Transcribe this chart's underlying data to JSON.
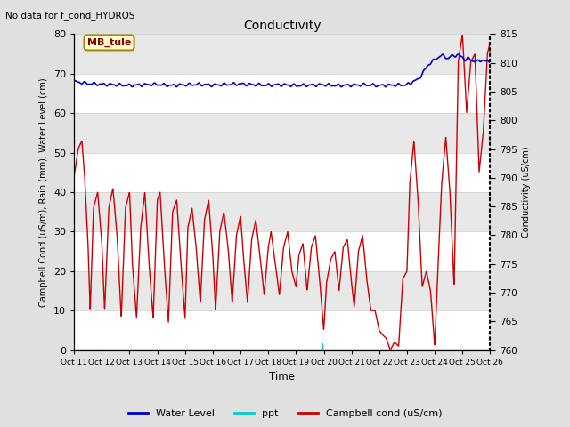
{
  "title": "Conductivity",
  "top_left_text": "No data for f_cond_HYDROS",
  "station_label": "MB_tule",
  "xlabel": "Time",
  "ylabel_left": "Campbell Cond (uS/m), Rain (mm), Water Level (cm)",
  "ylabel_right": "Conductivity (uS/cm)",
  "ylim_left": [
    0,
    80
  ],
  "ylim_right": [
    760,
    815
  ],
  "xtick_labels": [
    "Oct 11",
    "Oct 12",
    "Oct 13",
    "Oct 14",
    "Oct 15",
    "Oct 16",
    "Oct 17",
    "Oct 18",
    "Oct 19",
    "Oct 20",
    "Oct 21",
    "Oct 22",
    "Oct 23",
    "Oct 24",
    "Oct 25",
    "Oct 26"
  ],
  "fig_bg_color": "#e0e0e0",
  "plot_bg_color": "#f0f0f0",
  "band_color_light": "#f5f5f5",
  "band_color_dark": "#e8e8e8",
  "water_level_color": "#0000cc",
  "ppt_color": "#00cccc",
  "campbell_color": "#cc0000",
  "grid_color": "#ffffff",
  "legend_entries": [
    "Water Level",
    "ppt",
    "Campbell cond (uS/cm)"
  ],
  "water_level_key_x": [
    0,
    0.5,
    1,
    1.5,
    2,
    2.5,
    3,
    3.5,
    4,
    4.5,
    5,
    5.5,
    6,
    6.5,
    7,
    7.5,
    8,
    8.5,
    9,
    9.5,
    10,
    10.5,
    11,
    11.5,
    12,
    12.1,
    12.2,
    12.4,
    12.5,
    12.6,
    12.7,
    12.8,
    12.9,
    13.0,
    13.1,
    13.2,
    13.3,
    13.4,
    13.5,
    13.6,
    13.7,
    13.8,
    13.9,
    14.0,
    14.1,
    14.2,
    14.3,
    14.4,
    14.5,
    14.6,
    14.7,
    14.8,
    14.9,
    15.0
  ],
  "water_level_key_y": [
    68,
    67.5,
    67.3,
    67.2,
    67.0,
    67.2,
    67.3,
    67.0,
    67.2,
    67.3,
    67.1,
    67.3,
    67.4,
    67.2,
    67.1,
    67.2,
    67.0,
    67.1,
    67.2,
    67.0,
    67.1,
    67.2,
    67.0,
    67.1,
    67.2,
    67.5,
    68.0,
    68.5,
    69.5,
    70.5,
    71.5,
    72.5,
    73.0,
    73.5,
    74.0,
    74.5,
    74.5,
    74.2,
    73.8,
    74.5,
    74.5,
    74.8,
    74.5,
    74.2,
    73.5,
    73.8,
    73.5,
    73.2,
    73.0,
    73.2,
    73.5,
    73.2,
    73.0,
    73.2
  ],
  "campbell_key_x": [
    0,
    0.15,
    0.28,
    0.38,
    0.5,
    0.58,
    0.7,
    0.85,
    1.0,
    1.1,
    1.25,
    1.4,
    1.55,
    1.7,
    1.85,
    2.0,
    2.1,
    2.25,
    2.4,
    2.55,
    2.7,
    2.85,
    3.0,
    3.1,
    3.25,
    3.4,
    3.55,
    3.7,
    3.85,
    4.0,
    4.1,
    4.25,
    4.4,
    4.55,
    4.7,
    4.85,
    5.0,
    5.1,
    5.25,
    5.4,
    5.55,
    5.7,
    5.85,
    6.0,
    6.1,
    6.25,
    6.4,
    6.55,
    6.7,
    6.85,
    7.0,
    7.1,
    7.25,
    7.4,
    7.55,
    7.7,
    7.85,
    8.0,
    8.1,
    8.25,
    8.4,
    8.55,
    8.7,
    8.85,
    9.0,
    9.1,
    9.25,
    9.4,
    9.55,
    9.7,
    9.85,
    10.0,
    10.1,
    10.25,
    10.4,
    10.55,
    10.7,
    10.85,
    11.0,
    11.1,
    11.25,
    11.4,
    11.55,
    11.7,
    11.85,
    12.0,
    12.1,
    12.25,
    12.4,
    12.55,
    12.7,
    12.85,
    13.0,
    13.1,
    13.25,
    13.4,
    13.55,
    13.7,
    13.85,
    14.0,
    14.15,
    14.3,
    14.45,
    14.6,
    14.75,
    14.9,
    15.0
  ],
  "campbell_key_y": [
    44,
    51,
    53,
    44,
    27,
    10,
    36,
    40,
    27,
    10,
    36,
    41,
    29,
    8,
    36,
    40,
    22,
    8,
    31,
    40,
    22,
    8,
    38,
    40,
    22,
    7,
    35,
    38,
    22,
    8,
    31,
    36,
    26,
    12,
    33,
    38,
    24,
    10,
    30,
    35,
    26,
    12,
    29,
    34,
    24,
    12,
    28,
    33,
    24,
    14,
    26,
    30,
    22,
    14,
    26,
    30,
    20,
    16,
    24,
    27,
    15,
    26,
    29,
    18,
    5,
    17,
    23,
    25,
    15,
    26,
    28,
    17,
    11,
    25,
    29,
    18,
    10,
    10,
    5,
    4,
    3,
    0,
    2,
    1,
    18,
    20,
    42,
    53,
    38,
    16,
    20,
    15,
    1,
    18,
    42,
    54,
    40,
    16,
    73,
    80,
    60,
    73,
    75,
    45,
    55,
    75,
    78
  ],
  "ppt_x": [
    8.95
  ],
  "ppt_y": [
    1.5
  ]
}
